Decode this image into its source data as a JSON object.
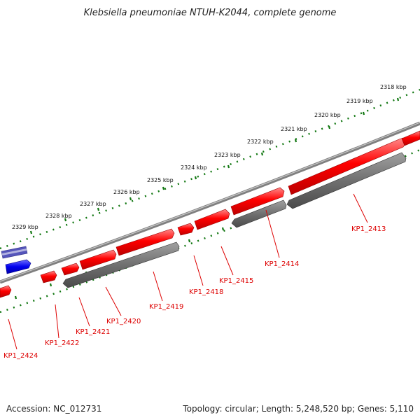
{
  "title": "Klebsiella pneumoniae NTUH-K2044, complete genome",
  "footer": {
    "accession": "Accession: NC_012731",
    "summary": "Topology: circular; Length: 5,248,520 bp; Genes: 5,110"
  },
  "colors": {
    "forward_gene": "#ff0000",
    "reverse_gene": "#707070",
    "special_forward": "#0000ee",
    "special_band": "#5555bb",
    "backbone": "#808080",
    "ruler": "#117711",
    "label": "#dd0000"
  },
  "ticks": [
    "2318 kbp",
    "2319 kbp",
    "2320 kbp",
    "2321 kbp",
    "2322 kbp",
    "2323 kbp",
    "2324 kbp",
    "2325 kbp",
    "2326 kbp",
    "2327 kbp",
    "2328 kbp",
    "2329 kbp"
  ],
  "gene_labels": [
    "KP1_2413",
    "KP1_2414",
    "KP1_2415",
    "KP1_2418",
    "KP1_2419",
    "KP1_2420",
    "KP1_2421",
    "KP1_2422",
    "KP1_2424"
  ]
}
